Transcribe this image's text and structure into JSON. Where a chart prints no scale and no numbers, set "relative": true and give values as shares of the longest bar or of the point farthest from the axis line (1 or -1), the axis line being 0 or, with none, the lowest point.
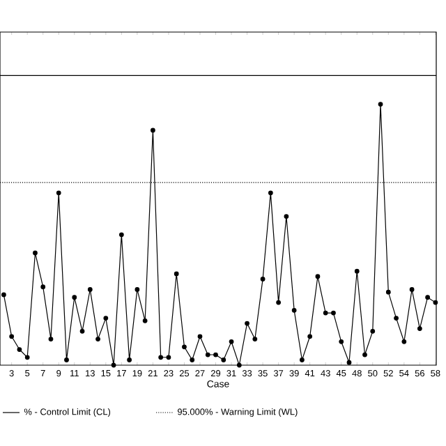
{
  "chart_data": {
    "type": "line",
    "xlabel": "Case",
    "categories": [
      null,
      "3",
      null,
      "5",
      null,
      "7",
      null,
      "9",
      null,
      "11",
      null,
      "13",
      null,
      "15",
      null,
      "17",
      null,
      "19",
      null,
      "21",
      null,
      "23",
      null,
      "25",
      null,
      "27",
      null,
      "29",
      null,
      "31",
      null,
      "33",
      null,
      "35",
      null,
      "37",
      null,
      "39",
      null,
      "41",
      null,
      "43",
      null,
      "45",
      null,
      "48",
      null,
      "50",
      null,
      "52",
      null,
      "54",
      null,
      "56",
      null,
      "58"
    ],
    "series": [
      {
        "color": "#000000",
        "values": [
          0.27,
          0.11,
          0.06,
          0.03,
          0.43,
          0.3,
          0.1,
          0.66,
          0.02,
          0.26,
          0.13,
          0.29,
          0.1,
          0.18,
          0,
          0.5,
          0.02,
          0.29,
          0.17,
          0.9,
          0.03,
          0.03,
          0.35,
          0.07,
          0.02,
          0.11,
          0.04,
          0.04,
          0.02,
          0.09,
          0,
          0.16,
          0.1,
          0.33,
          0.66,
          0.24,
          0.57,
          0.21,
          0.02,
          0.11,
          0.34,
          0.2,
          0.2,
          0.09,
          0.01,
          0.36,
          0.04,
          0.13,
          1,
          0.28,
          0.18,
          0.09,
          0.29,
          0.14,
          0.26,
          0.24
        ]
      }
    ],
    "relative": true,
    "marker": "circle",
    "line_style": "solid",
    "ref_lines": [
      {
        "axis": "y",
        "value": 1.11,
        "label": "% - Control Limit (CL)",
        "line_style": "solid",
        "color": "#000000"
      },
      {
        "axis": "y",
        "value": 0.7,
        "label": "95.000% - Warning Limit (WL)",
        "line_style": "dotted",
        "color": "#000000"
      }
    ],
    "legend": "bottom"
  }
}
